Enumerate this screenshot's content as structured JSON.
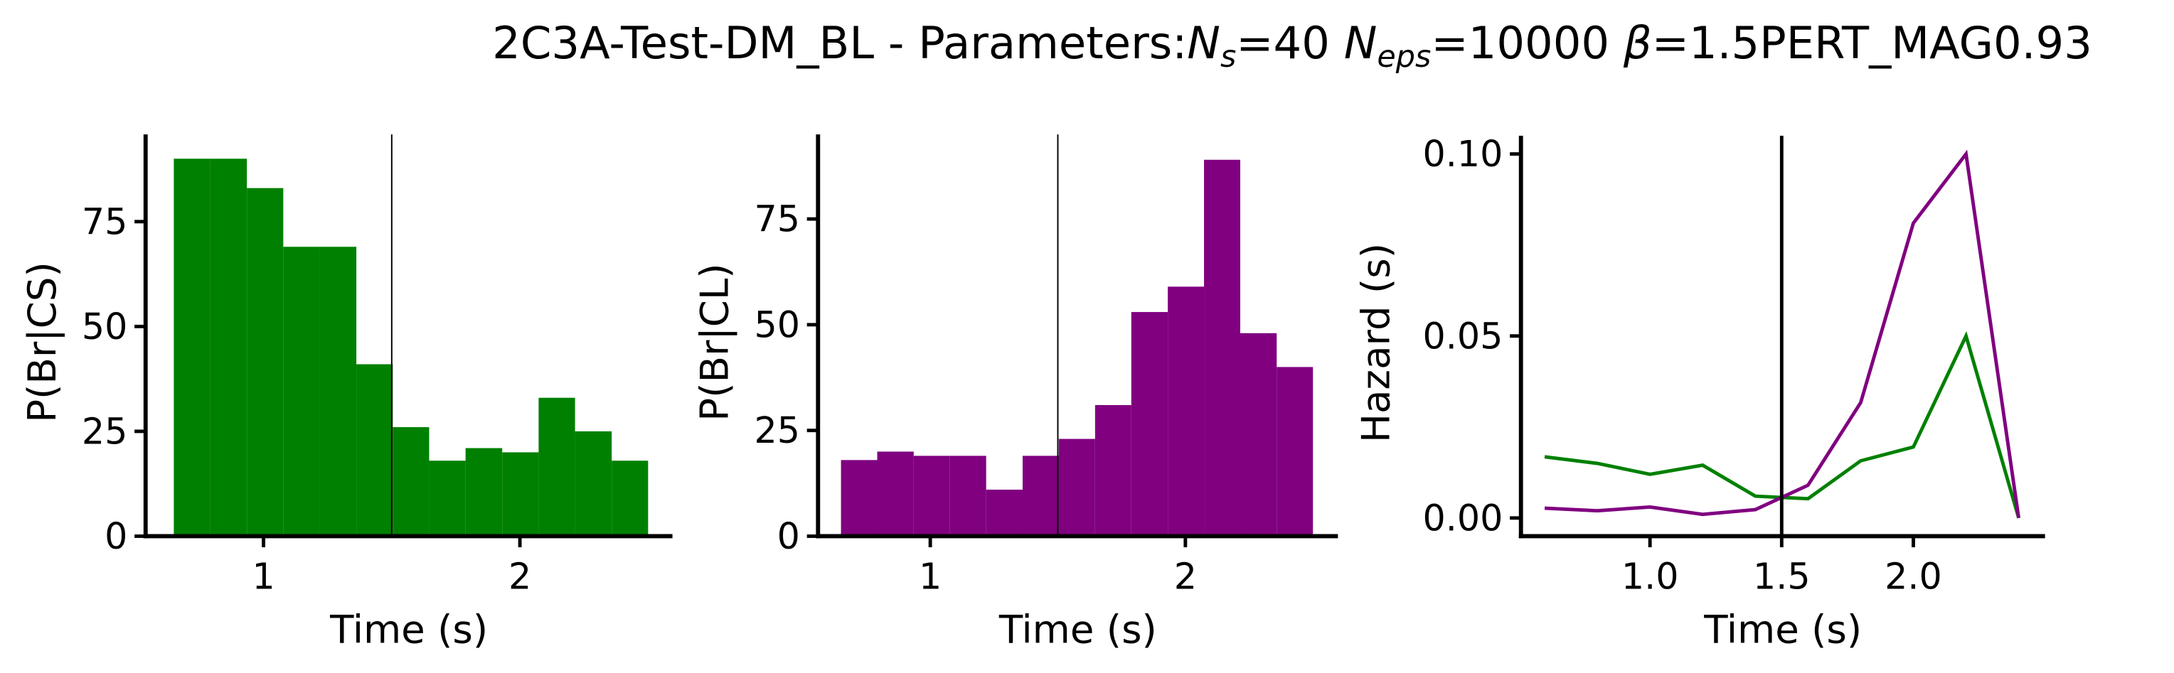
{
  "title": [
    {
      "text": "2C3A-Test-DM_BL - Parameters:",
      "style": "normal"
    },
    {
      "text": "N",
      "style": "italic"
    },
    {
      "text": "s",
      "style": "sub"
    },
    {
      "text": "=40 ",
      "style": "normal"
    },
    {
      "text": "N",
      "style": "italic"
    },
    {
      "text": "eps",
      "style": "sub"
    },
    {
      "text": "=10000 ",
      "style": "normal"
    },
    {
      "text": "β",
      "style": "italic"
    },
    {
      "text": "=1.5PERT_MAG0.93",
      "style": "normal"
    }
  ],
  "chart_data": [
    {
      "type": "histogram",
      "xlabel": "Time (s)",
      "ylabel": "P(Br|CS)",
      "color": "#008000",
      "bins": [
        0.65,
        0.792,
        0.935,
        1.077,
        1.219,
        1.362,
        1.504,
        1.646,
        1.788,
        1.931,
        2.073,
        2.215,
        2.358,
        2.5
      ],
      "values": [
        90,
        90,
        83,
        69,
        69,
        41,
        26,
        18,
        21,
        20,
        33,
        25,
        18
      ],
      "xlim": [
        0.54,
        2.595
      ],
      "ylim": [
        0,
        95.8
      ],
      "xticks": [
        1,
        2
      ],
      "yticks": [
        0,
        25,
        50,
        75
      ],
      "vline": 1.5
    },
    {
      "type": "histogram",
      "xlabel": "Time (s)",
      "ylabel": "P(Br|CL)",
      "color": "#800080",
      "bins": [
        0.65,
        0.792,
        0.935,
        1.077,
        1.219,
        1.362,
        1.504,
        1.646,
        1.788,
        1.931,
        2.073,
        2.215,
        2.358,
        2.5
      ],
      "values": [
        18,
        20,
        19,
        19,
        11,
        19,
        23,
        31,
        53,
        59,
        89,
        48,
        40
      ],
      "xlim": [
        0.56,
        2.598
      ],
      "ylim": [
        0,
        95
      ],
      "xticks": [
        1,
        2
      ],
      "yticks": [
        0,
        25,
        50,
        75
      ],
      "vline": 1.5
    },
    {
      "type": "line",
      "xlabel": "Time (s)",
      "ylabel": "Hazard (s)",
      "x": [
        0.6,
        0.8,
        1.0,
        1.2,
        1.4,
        1.6,
        1.8,
        2.0,
        2.2,
        2.4
      ],
      "series": [
        {
          "color": "#008000",
          "values": [
            0.0168,
            0.015,
            0.012,
            0.0145,
            0.006,
            0.0053,
            0.0157,
            0.0195,
            0.05,
            0
          ]
        },
        {
          "color": "#800080",
          "values": [
            0.0027,
            0.002,
            0.003,
            0.001,
            0.0023,
            0.009,
            0.0317,
            0.081,
            0.1,
            0
          ]
        }
      ],
      "xlim": [
        0.51,
        2.5
      ],
      "ylim": [
        -0.005,
        0.105
      ],
      "xticks": [
        {
          "value": 1,
          "label": "1.0"
        },
        {
          "value": 1.5,
          "label": "1.5"
        },
        {
          "value": 2,
          "label": "2.0"
        }
      ],
      "yticks": [
        {
          "value": 0,
          "label": "0.00"
        },
        {
          "value": 0.05,
          "label": "0.05"
        },
        {
          "value": 0.1,
          "label": "0.10"
        }
      ],
      "vline": 1.5
    }
  ]
}
